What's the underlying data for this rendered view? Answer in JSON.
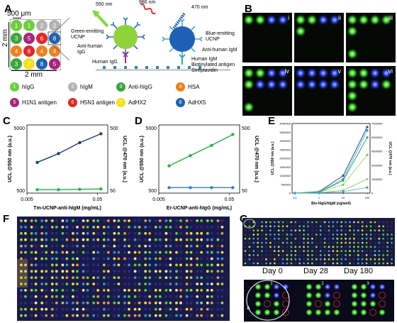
{
  "panels": {
    "A": {
      "label": "A",
      "scale_top": "500 μm",
      "scale_side": "2 mm",
      "scale_bottom": "2 mm",
      "grid": [
        [
          1,
          1,
          2,
          2
        ],
        [
          3,
          5,
          6,
          8
        ],
        [
          4,
          6,
          4,
          4
        ],
        [
          3,
          7,
          8,
          5
        ]
      ],
      "grid_colors": {
        "1": "#6dcf3a",
        "2": "#b4b4b4",
        "3": "#3aa63f",
        "4": "#f07f1d",
        "5": "#a7257f",
        "6": "#e3262a",
        "7": "#f4e11b",
        "8": "#1f63b1"
      },
      "legend": [
        {
          "num": "1",
          "text": "hIgG",
          "color": "#6dcf3a"
        },
        {
          "num": "2",
          "text": "hIgM",
          "color": "#b4b4b4"
        },
        {
          "num": "3",
          "text": "Anti-hIgG",
          "color": "#3aa63f"
        },
        {
          "num": "4",
          "text": "HSA",
          "color": "#f07f1d"
        },
        {
          "num": "5",
          "text": "H1N1 antigen",
          "color": "#a7257f"
        },
        {
          "num": "6",
          "text": "H5N1 antigen",
          "color": "#e3262a"
        },
        {
          "num": "7",
          "text": "AdHX2",
          "color": "#f4e11b"
        },
        {
          "num": "8",
          "text": "AdHX5",
          "color": "#1f63b1"
        }
      ],
      "diagram": {
        "green_wavelength": "550 nm",
        "nir_wavelength": "980 nm",
        "blue_wavelength": "470 nm",
        "green_ucnp": "Green-emitting UCNP",
        "blue_ucnp": "Blue-emitting UCNP",
        "anti_igg": "Anti-human IgG",
        "anti_igm": "Anti-human IgM",
        "human_igg": "Human IgG",
        "human_igm": "Human IgM",
        "biotinylated": "Biotinylated antigen",
        "streptavidin": "Streptavidin"
      }
    },
    "B": {
      "label": "B",
      "subpanels": [
        {
          "id": "i",
          "spots": [
            [
              "g",
              "g",
              "b",
              "b"
            ]
          ]
        },
        {
          "id": "ii",
          "spots": [
            [
              "g",
              "g",
              "b",
              "b"
            ],
            [
              "g",
              "",
              "",
              ""
            ]
          ]
        },
        {
          "id": "iii",
          "spots": [
            [
              "g",
              "g",
              "g",
              "g"
            ],
            [
              "g",
              "",
              "",
              ""
            ],
            [
              "",
              "",
              "",
              ""
            ],
            [
              "g",
              "",
              "",
              ""
            ]
          ]
        },
        {
          "id": "iv",
          "spots": [
            [
              "g",
              "g",
              "b",
              "b"
            ],
            [
              "g",
              "b",
              "b",
              "b"
            ],
            [
              "",
              "",
              "",
              ""
            ],
            [
              "g",
              "",
              "",
              ""
            ]
          ]
        },
        {
          "id": "v",
          "spots": [
            [
              "b",
              "b",
              "b",
              "b"
            ],
            [
              "b",
              "b",
              "b",
              "b"
            ],
            [
              "",
              "",
              "",
              ""
            ],
            [
              "",
              "",
              "",
              ""
            ]
          ]
        },
        {
          "id": "vi",
          "spots": [
            [
              "g",
              "g",
              "b",
              "b"
            ],
            [
              "g",
              "g",
              "b",
              "g"
            ],
            [
              "g",
              "",
              "",
              ""
            ],
            [
              "g",
              "",
              "",
              ""
            ]
          ]
        }
      ]
    }
  },
  "chart_data": [
    {
      "id": "C",
      "type": "line",
      "xlabel": "Tm-UCNP-anti-hIgM (mg/mL)",
      "ylabel_left": "UCL @550 nm (a.u.)",
      "ylabel_right": "UCL @470 nm (a.u.)",
      "x_scale": "log",
      "x_ticks": [
        "0.005",
        "0.05"
      ],
      "y_left_ticks": [
        "500",
        "5000"
      ],
      "y_right_ticks": [
        "50",
        "500"
      ],
      "x": [
        0.007,
        0.014,
        0.028,
        0.056
      ],
      "series": [
        {
          "color": "#1d3f77",
          "values": [
            0.45,
            0.58,
            0.74,
            0.87
          ]
        },
        {
          "color": "#22b14c",
          "values": [
            0.05,
            0.05,
            0.055,
            0.06
          ]
        }
      ]
    },
    {
      "id": "D",
      "type": "line",
      "xlabel": "Er-UCNP-anti-hIgG (mg/mL)",
      "ylabel_left": "UCL @550 nm (a.u.)",
      "ylabel_right": "UCL @470 nm (a.u.)",
      "x_scale": "log",
      "x_ticks": [
        "0.005",
        "0.05"
      ],
      "y_left_ticks": [
        "500",
        "5000"
      ],
      "y_right_ticks": [
        "50",
        "500"
      ],
      "x": [
        0.007,
        0.014,
        0.028,
        0.056
      ],
      "series": [
        {
          "color": "#22b14c",
          "values": [
            0.4,
            0.55,
            0.7,
            0.86
          ]
        },
        {
          "color": "#3a7bd5",
          "values": [
            0.08,
            0.08,
            0.08,
            0.08
          ]
        }
      ]
    },
    {
      "id": "E",
      "type": "line",
      "xlabel": "Bio-hIgG/hIgM (ng/well)",
      "ylabel_left": "UCL @550 nm (a.u.)",
      "ylabel_right": "UCL @470 nm (a.u.)",
      "x_scale": "log",
      "x_ticks": [
        "0.1",
        "1",
        "10",
        "100"
      ],
      "y_left_ticks": [
        "0",
        "500000",
        "1000000",
        "1500000",
        "2000000",
        "2500000",
        "3000000",
        "3500000",
        "4000000"
      ],
      "y_right_ticks": [
        "0",
        "1500000",
        "3000000",
        "4500000",
        "6000000",
        "7500000"
      ],
      "x": [
        0.1,
        1,
        10,
        100
      ],
      "series": [
        {
          "color": "#1f4e9b",
          "values": [
            0,
            0.02,
            0.25,
            0.95
          ]
        },
        {
          "color": "#2e7bd1",
          "values": [
            0,
            0.015,
            0.2,
            0.9
          ]
        },
        {
          "color": "#22b14c",
          "values": [
            0,
            0.01,
            0.18,
            0.8
          ]
        },
        {
          "color": "#6fcf40",
          "values": [
            0,
            0.008,
            0.12,
            0.55
          ]
        },
        {
          "color": "#88d96a",
          "values": [
            0,
            0.005,
            0.04,
            0.2
          ]
        },
        {
          "color": "#2a9dd6",
          "values": [
            0,
            0.003,
            0.02,
            0.08
          ]
        }
      ]
    }
  ],
  "panelF": {
    "label": "F",
    "cols": 20,
    "rows": 16
  },
  "panelG": {
    "label": "G",
    "day_labels": [
      "Day 0",
      "Day 28",
      "Day 180"
    ],
    "inset_numbers": [
      "1",
      "2",
      "3"
    ],
    "inset_letter": "A"
  },
  "b_labels": [
    "i",
    "ii",
    "iii",
    "iv",
    "v",
    "vi"
  ]
}
